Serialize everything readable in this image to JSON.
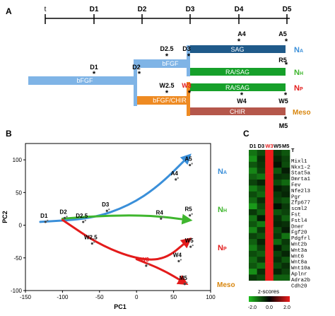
{
  "panel_labels": {
    "a": "A",
    "b": "B",
    "c": "C"
  },
  "panel_a": {
    "timeline": {
      "start_label": "t",
      "ticks": [
        "D1",
        "D2",
        "D3",
        "D4",
        "D5"
      ]
    },
    "stages": {
      "d1": "D1",
      "d2": "D2",
      "d25": "D2.5",
      "d3": "D3",
      "a4": "A4",
      "a5": "A5",
      "r5": "R5",
      "w25": "W2.5",
      "w3": "W3",
      "w4": "W4",
      "w5": "W5",
      "m5": "M5"
    },
    "bars": {
      "bfgf_main": "bFGF",
      "bfgf_upper": "bFGF",
      "bfgf_chir": "bFGF/CHIR",
      "sag": "SAG",
      "ra_sag_upper": "RA/SAG",
      "ra_sag_lower": "RA/SAG",
      "chir": "CHIR"
    },
    "fates": {
      "na": {
        "main": "N",
        "sub": "A"
      },
      "nh": {
        "main": "N",
        "sub": "H"
      },
      "np": {
        "main": "N",
        "sub": "P"
      },
      "meso": "Meso"
    },
    "colors": {
      "bfgf": "#7fb4e6",
      "sag": "#1f5a8a",
      "ra_sag": "#16a02a",
      "bfgf_chir": "#ee8a22",
      "chir": "#b5574b",
      "na": "#3a8fd9",
      "nh": "#3fb62e",
      "np": "#e31b1b",
      "meso": "#d8860e",
      "w3": "#e31b1b"
    }
  },
  "panel_b": {
    "chart_data": {
      "type": "scatter",
      "title": "",
      "xlabel": "PC1",
      "ylabel": "PC2",
      "xlim": [
        -150,
        100
      ],
      "ylim": [
        -100,
        125
      ],
      "x_ticks": [
        "-150",
        "-100",
        "-50",
        "0",
        "50",
        "100"
      ],
      "y_ticks": [
        "100",
        "50",
        "0",
        "-50",
        "-100"
      ],
      "points": [
        {
          "label": "D1",
          "x": -123,
          "y": 5
        },
        {
          "label": "D2",
          "x": -97,
          "y": 11
        },
        {
          "label": "D2.5",
          "x": -72,
          "y": 5
        },
        {
          "label": "D3",
          "x": -40,
          "y": 22
        },
        {
          "label": "A4",
          "x": 53,
          "y": 70
        },
        {
          "label": "A5",
          "x": 72,
          "y": 92
        },
        {
          "label": "R4",
          "x": 33,
          "y": 10
        },
        {
          "label": "R5",
          "x": 72,
          "y": 15
        },
        {
          "label": "W2.5",
          "x": -60,
          "y": -28
        },
        {
          "label": "W3",
          "x": 13,
          "y": -62
        },
        {
          "label": "W4",
          "x": 57,
          "y": -55
        },
        {
          "label": "W5",
          "x": 73,
          "y": -33
        },
        {
          "label": "M5",
          "x": 65,
          "y": -90
        }
      ],
      "trajectories": [
        {
          "fate": "na",
          "points": [
            [
              -130,
              5
            ],
            [
              -60,
              10
            ],
            [
              -10,
              30
            ],
            [
              30,
              60
            ],
            [
              70,
              105
            ]
          ]
        },
        {
          "fate": "nh",
          "points": [
            [
              -100,
              10
            ],
            [
              -40,
              15
            ],
            [
              20,
              15
            ],
            [
              70,
              8
            ]
          ]
        },
        {
          "fate": "np",
          "points": [
            [
              -100,
              8
            ],
            [
              -50,
              -30
            ],
            [
              0,
              -52
            ],
            [
              38,
              -53
            ],
            [
              70,
              -23
            ]
          ]
        },
        {
          "fate": "meso",
          "points": [
            [
              0,
              -52
            ],
            [
              35,
              -68
            ],
            [
              65,
              -88
            ]
          ]
        }
      ],
      "fate_labels": {
        "na": {
          "main": "N",
          "sub": "A"
        },
        "nh": {
          "main": "N",
          "sub": "H"
        },
        "np": {
          "main": "N",
          "sub": "P"
        },
        "meso": "Meso"
      }
    }
  },
  "panel_c": {
    "chart_data": {
      "type": "heatmap",
      "columns": [
        "D1",
        "D3",
        "W3",
        "W5",
        "M5"
      ],
      "highlight_column": "W3",
      "rows": [
        "Mixl1",
        "Nkx1-2",
        "Stat5a",
        "Dmrta1",
        "Fev",
        "Nfe2l3",
        "Pgr",
        "Zfp677",
        "scml2",
        "Fst",
        "Fstl4",
        "Dner",
        "Fgf20",
        "Pdgfrl",
        "Wnt2b",
        "Wnt3a",
        "Wnt6",
        "Wnt8a",
        "Wnt10a",
        "Aplnr",
        "Adra2b",
        "Cdh20"
      ],
      "header_symbol": "T",
      "values": [
        [
          -1.2,
          -0.8,
          2.0,
          -0.6,
          -0.9
        ],
        [
          -1.5,
          -0.5,
          2.0,
          -0.4,
          -0.7
        ],
        [
          -0.9,
          -0.6,
          2.0,
          -0.2,
          -0.8
        ],
        [
          -1.4,
          -0.7,
          2.0,
          -0.9,
          -0.3
        ],
        [
          -1.0,
          -1.2,
          2.0,
          -0.5,
          -0.6
        ],
        [
          -0.7,
          -0.4,
          2.0,
          -0.8,
          -1.1
        ],
        [
          -1.3,
          -0.9,
          2.0,
          -0.3,
          -0.5
        ],
        [
          -0.8,
          -1.1,
          2.0,
          -0.6,
          -0.4
        ],
        [
          -1.1,
          -0.5,
          2.0,
          -0.7,
          -0.9
        ],
        [
          -1.6,
          -0.8,
          2.0,
          -0.2,
          -0.6
        ],
        [
          -0.6,
          -1.0,
          2.0,
          -0.9,
          -0.7
        ],
        [
          -1.2,
          -0.3,
          2.0,
          -0.5,
          -1.0
        ],
        [
          -0.9,
          -1.3,
          2.0,
          -0.4,
          -0.5
        ],
        [
          -1.4,
          -0.6,
          2.0,
          -0.8,
          -0.3
        ],
        [
          -0.7,
          -0.9,
          2.0,
          -0.6,
          -1.2
        ],
        [
          -1.0,
          -0.4,
          2.0,
          -1.1,
          -0.6
        ],
        [
          -1.3,
          -0.7,
          2.0,
          -0.3,
          -0.8
        ],
        [
          -0.8,
          -1.0,
          2.0,
          -0.7,
          -0.4
        ],
        [
          -1.1,
          -0.6,
          2.0,
          -0.5,
          -0.9
        ],
        [
          -0.9,
          -1.2,
          2.0,
          -0.8,
          -0.5
        ],
        [
          -1.5,
          -0.5,
          2.0,
          -0.4,
          -0.7
        ],
        [
          -0.6,
          -0.8,
          2.0,
          -1.0,
          -1.0
        ]
      ],
      "scale": {
        "title": "z-scores",
        "min": -2.0,
        "mid": 0.0,
        "max": 2.0,
        "tick_labels": [
          "-2.0",
          "0.0",
          "2.0"
        ],
        "low_color": "#1fbf1f",
        "mid_color": "#000000",
        "high_color": "#ee1c1c"
      }
    }
  }
}
